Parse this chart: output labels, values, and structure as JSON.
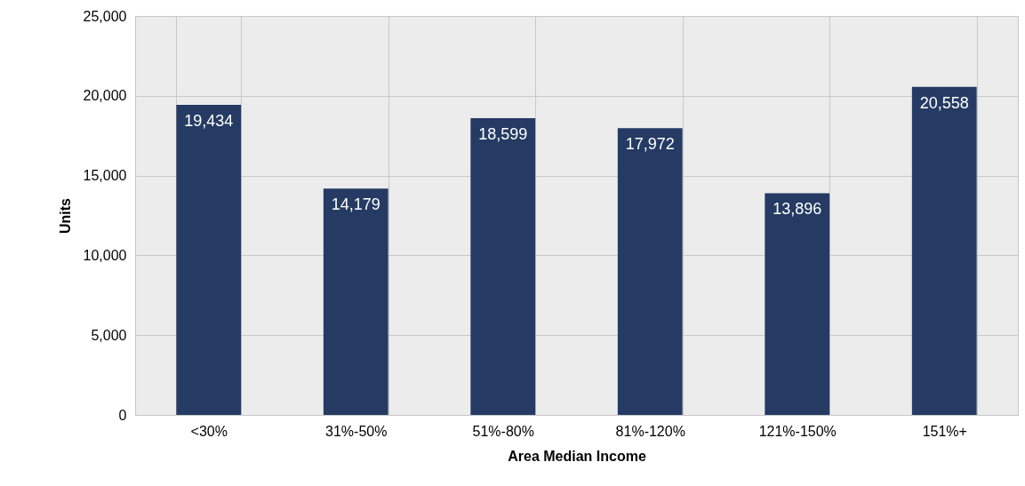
{
  "chart_data": {
    "type": "bar",
    "xlabel": "Area Median Income",
    "ylabel": "Units",
    "categories": [
      "<30%",
      "31%-50%",
      "51%-80%",
      "81%-120%",
      "121%-150%",
      "151%+"
    ],
    "values": [
      19434,
      14179,
      18599,
      17972,
      13896,
      20558
    ],
    "color": "#253b64",
    "value_labels": [
      "19,434",
      "14,179",
      "18,599",
      "17,972",
      "13,896",
      "20,558"
    ],
    "ylim": [
      0,
      25000
    ],
    "yticks": [
      0,
      {
        "value": 5000,
        "label": "5,000"
      },
      {
        "value": 10000,
        "label": "10,000"
      },
      {
        "value": 15000,
        "label": "15,000"
      },
      {
        "value": 20000,
        "label": "20,000"
      },
      {
        "value": 25000,
        "label": "25,000"
      }
    ],
    "grid": true
  }
}
